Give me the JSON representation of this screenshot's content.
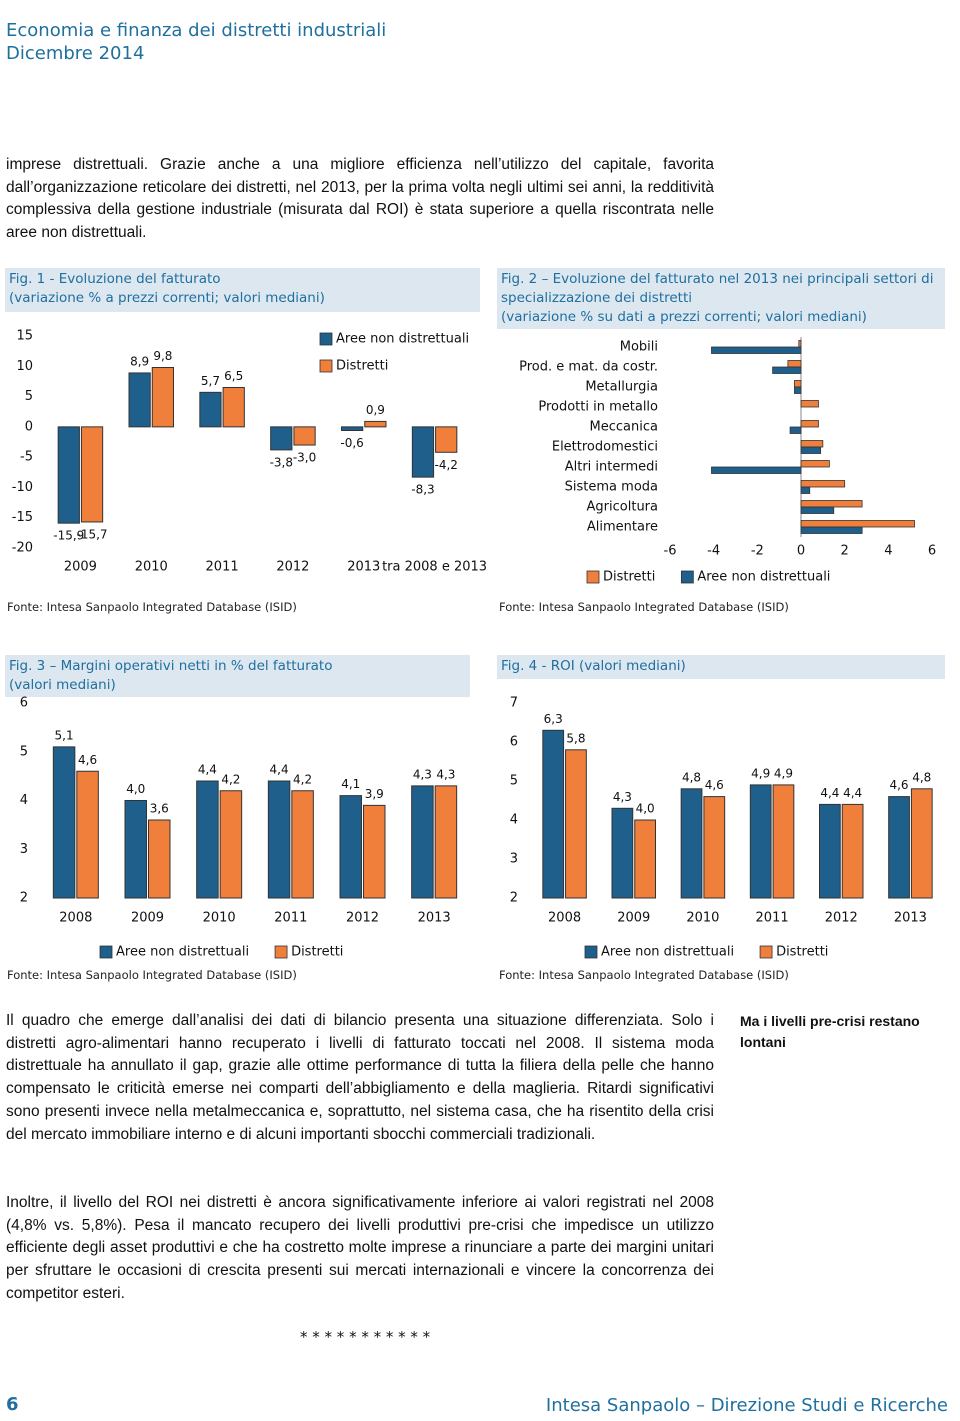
{
  "header": {
    "title": "Economia e finanza dei distretti industriali",
    "date": "Dicembre 2014"
  },
  "paragraphs": [
    "imprese distrettuali. Grazie anche a una migliore efficienza nell’utilizzo del capitale, favorita dall’organizzazione reticolare dei distretti, nel 2013, per la prima volta negli ultimi sei anni, la redditività complessiva della gestione industriale (misurata dal ROI) è stata superiore a quella riscontrata nelle aree non distrettuali.",
    "Il quadro che emerge dall’analisi dei dati di bilancio presenta una situazione differenziata. Solo i distretti agro-alimentari hanno recuperato i livelli di fatturato toccati nel 2008. Il sistema moda distrettuale ha annullato il gap, grazie alle ottime performance di tutta la filiera della pelle che hanno compensato le criticità emerse nei comparti dell’abbigliamento e della maglieria. Ritardi significativi sono presenti invece nella metalmeccanica e, soprattutto, nel sistema casa, che ha risentito della crisi del mercato immobiliare interno e di alcuni importanti sbocchi commerciali tradizionali.",
    "Inoltre, il livello del ROI nei distretti è ancora significativamente inferiore ai valori registrati nel 2008 (4,8% vs. 5,8%). Pesa il mancato recupero dei livelli produttivi pre-crisi che impedisce un utilizzo efficiente degli asset produttivi e che ha costretto molte imprese a rinunciare a parte dei margini unitari per sfruttare le occasioni di crescita presenti sui mercati internazionali e vincere la concorrenza dei competitor esteri."
  ],
  "side_note": "Ma i livelli pre-crisi restano lontani",
  "separator": "* * * * * * * * * * *",
  "footer": {
    "page": "6",
    "publisher": "Intesa Sanpaolo – Direzione Studi e Ricerche"
  },
  "charts": [
    {
      "type": "bar",
      "title": "Fig. 1 - Evoluzione del fatturato",
      "subtitle": "(variazione % a prezzi correnti; valori mediani)",
      "categories": [
        "2009",
        "2010",
        "2011",
        "2012",
        "2013",
        "tra 2008 e 2013"
      ],
      "series": [
        {
          "name": "Aree non distrettuali",
          "color": "#1f5f8b",
          "values": [
            -15.9,
            8.9,
            5.7,
            -3.8,
            -0.6,
            -8.3
          ],
          "value_labels": [
            "-15,9",
            "8,9",
            "5,7",
            "-3,8",
            "-0,6",
            "-8,3"
          ]
        },
        {
          "name": "Distretti",
          "color": "#f07f3c",
          "values": [
            -15.7,
            9.8,
            6.5,
            -3.0,
            0.9,
            -4.2
          ],
          "value_labels": [
            "-15,7",
            "9,8",
            "6,5",
            "-3,0",
            "0,9",
            "-4,2"
          ]
        }
      ],
      "ylim": [
        -20,
        15
      ],
      "yticks": [
        -20,
        -15,
        -10,
        -5,
        0,
        5,
        10,
        15
      ],
      "legend": "upper right",
      "source": "Fonte: Intesa Sanpaolo Integrated Database (ISID)"
    },
    {
      "type": "barh",
      "title": "Fig. 2 – Evoluzione del fatturato nel 2013 nei principali settori di specializzazione dei distretti",
      "subtitle": "(variazione % su dati a prezzi correnti; valori mediani)",
      "categories": [
        "Mobili",
        "Prod. e mat. da costr.",
        "Metallurgia",
        "Prodotti in metallo",
        "Meccanica",
        "Elettrodomestici",
        "Altri intermedi",
        "Sistema moda",
        "Agricoltura",
        "Alimentare"
      ],
      "series": [
        {
          "name": "Distretti",
          "color": "#f07f3c",
          "values": [
            -0.1,
            -0.6,
            -0.3,
            0.8,
            0.8,
            1.0,
            1.3,
            2.0,
            2.8,
            5.2
          ]
        },
        {
          "name": "Aree non distrettuali",
          "color": "#1f5f8b",
          "values": [
            -4.1,
            -1.3,
            -0.3,
            0.0,
            -0.5,
            0.9,
            -4.1,
            0.4,
            1.5,
            2.8
          ]
        }
      ],
      "xlim": [
        -6,
        6
      ],
      "xticks": [
        -6,
        -4,
        -2,
        0,
        2,
        4,
        6
      ],
      "legend": "bottom",
      "source": "Fonte: Intesa Sanpaolo Integrated Database (ISID)"
    },
    {
      "type": "bar",
      "title": "Fig. 3 – Margini operativi netti in % del fatturato",
      "subtitle": "(valori mediani)",
      "categories": [
        "2008",
        "2009",
        "2010",
        "2011",
        "2012",
        "2013"
      ],
      "series": [
        {
          "name": "Aree non distrettuali",
          "color": "#1f5f8b",
          "values": [
            5.1,
            4.0,
            4.4,
            4.4,
            4.1,
            4.3
          ],
          "value_labels": [
            "5,1",
            "4,0",
            "4,4",
            "4,4",
            "4,1",
            "4,3"
          ]
        },
        {
          "name": "Distretti",
          "color": "#f07f3c",
          "values": [
            4.6,
            3.6,
            4.2,
            4.2,
            3.9,
            4.3
          ],
          "value_labels": [
            "4,6",
            "3,6",
            "4,2",
            "4,2",
            "3,9",
            "4,3"
          ]
        }
      ],
      "ylim": [
        2,
        6
      ],
      "yticks": [
        2,
        3,
        4,
        5,
        6
      ],
      "legend": "bottom",
      "source": "Fonte: Intesa Sanpaolo Integrated Database (ISID)"
    },
    {
      "type": "bar",
      "title": "Fig. 4 - ROI (valori mediani)",
      "categories": [
        "2008",
        "2009",
        "2010",
        "2011",
        "2012",
        "2013"
      ],
      "series": [
        {
          "name": "Aree non distrettuali",
          "color": "#1f5f8b",
          "values": [
            6.3,
            4.3,
            4.8,
            4.9,
            4.4,
            4.6
          ],
          "value_labels": [
            "6,3",
            "4,3",
            "4,8",
            "4,9",
            "4,4",
            "4,6"
          ]
        },
        {
          "name": "Distretti",
          "color": "#f07f3c",
          "values": [
            5.8,
            4.0,
            4.6,
            4.9,
            4.4,
            4.8
          ],
          "value_labels": [
            "5,8",
            "4,0",
            "4,6",
            "4,9",
            "4,4",
            "4,8"
          ]
        }
      ],
      "ylim": [
        2,
        7
      ],
      "yticks": [
        2,
        3,
        4,
        5,
        6,
        7
      ],
      "legend": "bottom",
      "source": "Fonte: Intesa Sanpaolo Integrated Database (ISID)"
    }
  ]
}
